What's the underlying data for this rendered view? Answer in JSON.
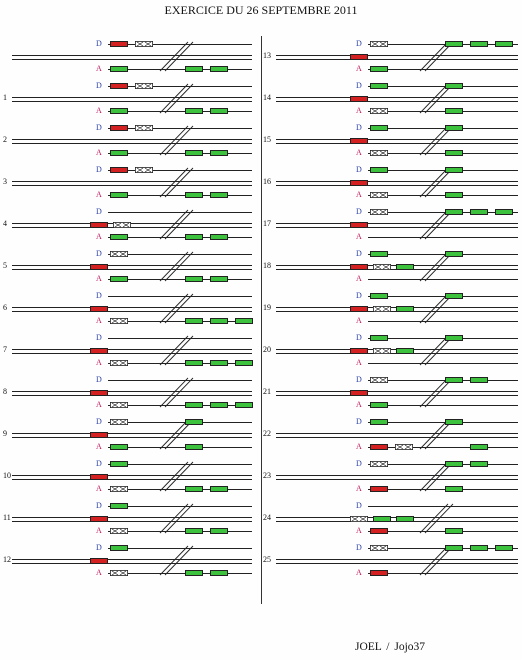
{
  "title": "EXERCICE DU 26 SEPTEMBRE 2011",
  "footer": "JOEL    /    Jojo37",
  "labels": {
    "depart": "D",
    "arrivee": "A"
  },
  "colors": {
    "red_wagon": "#d42020",
    "green_wagon": "#3cc23c",
    "line": "#222222",
    "departure_label": "#2b3fa8",
    "arrival_label": "#c2185b"
  },
  "panels": [
    {
      "number": "",
      "column": "left",
      "row": 0,
      "cars": [
        {
          "track": "D",
          "type": "red"
        },
        {
          "track": "D",
          "type": "empty"
        },
        {
          "track": "A",
          "type": "green"
        },
        {
          "track": "A",
          "type": "green"
        },
        {
          "track": "A",
          "type": "green"
        }
      ]
    },
    {
      "number": "1",
      "column": "left",
      "row": 1,
      "cars": [
        {
          "track": "D",
          "type": "red"
        },
        {
          "track": "D",
          "type": "empty"
        },
        {
          "track": "A",
          "type": "green"
        },
        {
          "track": "A",
          "type": "green"
        },
        {
          "track": "A",
          "type": "green"
        }
      ]
    },
    {
      "number": "2",
      "column": "left",
      "row": 2,
      "cars": [
        {
          "track": "D",
          "type": "red"
        },
        {
          "track": "D",
          "type": "empty"
        },
        {
          "track": "A",
          "type": "green"
        },
        {
          "track": "A",
          "type": "green"
        },
        {
          "track": "A",
          "type": "green"
        }
      ]
    },
    {
      "number": "3",
      "column": "left",
      "row": 3,
      "cars": [
        {
          "track": "D",
          "type": "red"
        },
        {
          "track": "D",
          "type": "empty"
        },
        {
          "track": "A",
          "type": "green"
        },
        {
          "track": "A",
          "type": "green"
        },
        {
          "track": "A",
          "type": "green"
        }
      ]
    },
    {
      "number": "4",
      "column": "left",
      "row": 4,
      "cars": [
        {
          "track": "M",
          "type": "red"
        },
        {
          "track": "M",
          "type": "empty"
        },
        {
          "track": "A",
          "type": "green"
        },
        {
          "track": "A",
          "type": "green"
        },
        {
          "track": "A",
          "type": "green"
        }
      ]
    },
    {
      "number": "5",
      "column": "left",
      "row": 5,
      "cars": [
        {
          "track": "D",
          "type": "empty"
        },
        {
          "track": "M",
          "type": "red"
        },
        {
          "track": "A",
          "type": "green"
        },
        {
          "track": "A",
          "type": "green"
        },
        {
          "track": "A",
          "type": "green"
        }
      ]
    },
    {
      "number": "6",
      "column": "left",
      "row": 6,
      "cars": [
        {
          "track": "M",
          "type": "red"
        },
        {
          "track": "A",
          "type": "empty"
        },
        {
          "track": "A",
          "type": "green"
        },
        {
          "track": "A",
          "type": "green"
        },
        {
          "track": "A",
          "type": "green"
        }
      ]
    },
    {
      "number": "7",
      "column": "left",
      "row": 7,
      "cars": [
        {
          "track": "M",
          "type": "red"
        },
        {
          "track": "A",
          "type": "empty"
        },
        {
          "track": "A",
          "type": "green"
        },
        {
          "track": "A",
          "type": "green"
        },
        {
          "track": "A",
          "type": "green"
        }
      ]
    },
    {
      "number": "8",
      "column": "left",
      "row": 8,
      "cars": [
        {
          "track": "M",
          "type": "red"
        },
        {
          "track": "A",
          "type": "empty"
        },
        {
          "track": "A",
          "type": "green"
        },
        {
          "track": "A",
          "type": "green"
        },
        {
          "track": "A",
          "type": "green"
        }
      ]
    },
    {
      "number": "9",
      "column": "left",
      "row": 9,
      "cars": [
        {
          "track": "D",
          "type": "empty"
        },
        {
          "track": "D",
          "type": "green"
        },
        {
          "track": "M",
          "type": "red"
        },
        {
          "track": "A",
          "type": "green"
        },
        {
          "track": "A",
          "type": "green"
        }
      ]
    },
    {
      "number": "10",
      "column": "left",
      "row": 10,
      "cars": [
        {
          "track": "D",
          "type": "green"
        },
        {
          "track": "M",
          "type": "red"
        },
        {
          "track": "A",
          "type": "empty"
        },
        {
          "track": "A",
          "type": "green"
        },
        {
          "track": "A",
          "type": "green"
        }
      ]
    },
    {
      "number": "11",
      "column": "left",
      "row": 11,
      "cars": [
        {
          "track": "D",
          "type": "green"
        },
        {
          "track": "M",
          "type": "red"
        },
        {
          "track": "A",
          "type": "empty"
        },
        {
          "track": "A",
          "type": "green"
        },
        {
          "track": "A",
          "type": "green"
        }
      ]
    },
    {
      "number": "12",
      "column": "left",
      "row": 12,
      "cars": [
        {
          "track": "D",
          "type": "green"
        },
        {
          "track": "M",
          "type": "red"
        },
        {
          "track": "A",
          "type": "empty"
        },
        {
          "track": "A",
          "type": "green"
        },
        {
          "track": "A",
          "type": "green"
        }
      ]
    },
    {
      "number": "13",
      "column": "right",
      "row": 0,
      "cars": [
        {
          "track": "D",
          "type": "empty"
        },
        {
          "track": "D",
          "type": "green"
        },
        {
          "track": "D",
          "type": "green"
        },
        {
          "track": "D",
          "type": "green"
        },
        {
          "track": "M",
          "type": "red"
        },
        {
          "track": "A",
          "type": "green"
        }
      ]
    },
    {
      "number": "14",
      "column": "right",
      "row": 1,
      "cars": [
        {
          "track": "D",
          "type": "green"
        },
        {
          "track": "D",
          "type": "green"
        },
        {
          "track": "M",
          "type": "red"
        },
        {
          "track": "A",
          "type": "empty"
        },
        {
          "track": "A",
          "type": "green"
        }
      ]
    },
    {
      "number": "15",
      "column": "right",
      "row": 2,
      "cars": [
        {
          "track": "D",
          "type": "green"
        },
        {
          "track": "D",
          "type": "green"
        },
        {
          "track": "M",
          "type": "red"
        },
        {
          "track": "A",
          "type": "empty"
        },
        {
          "track": "A",
          "type": "green"
        }
      ]
    },
    {
      "number": "16",
      "column": "right",
      "row": 3,
      "cars": [
        {
          "track": "D",
          "type": "green"
        },
        {
          "track": "D",
          "type": "green"
        },
        {
          "track": "M",
          "type": "red"
        },
        {
          "track": "A",
          "type": "empty"
        },
        {
          "track": "A",
          "type": "green"
        }
      ]
    },
    {
      "number": "17",
      "column": "right",
      "row": 4,
      "cars": [
        {
          "track": "D",
          "type": "empty"
        },
        {
          "track": "D",
          "type": "green"
        },
        {
          "track": "D",
          "type": "green"
        },
        {
          "track": "D",
          "type": "green"
        },
        {
          "track": "M",
          "type": "red"
        }
      ]
    },
    {
      "number": "18",
      "column": "right",
      "row": 5,
      "cars": [
        {
          "track": "D",
          "type": "green"
        },
        {
          "track": "D",
          "type": "green"
        },
        {
          "track": "M",
          "type": "red"
        },
        {
          "track": "M",
          "type": "empty"
        },
        {
          "track": "M",
          "type": "green"
        }
      ]
    },
    {
      "number": "19",
      "column": "right",
      "row": 6,
      "cars": [
        {
          "track": "D",
          "type": "green"
        },
        {
          "track": "D",
          "type": "green"
        },
        {
          "track": "M",
          "type": "red"
        },
        {
          "track": "M",
          "type": "empty"
        },
        {
          "track": "M",
          "type": "green"
        }
      ]
    },
    {
      "number": "20",
      "column": "right",
      "row": 7,
      "cars": [
        {
          "track": "D",
          "type": "green"
        },
        {
          "track": "D",
          "type": "green"
        },
        {
          "track": "M",
          "type": "red"
        },
        {
          "track": "M",
          "type": "empty"
        },
        {
          "track": "M",
          "type": "green"
        }
      ]
    },
    {
      "number": "21",
      "column": "right",
      "row": 8,
      "cars": [
        {
          "track": "D",
          "type": "empty"
        },
        {
          "track": "D",
          "type": "green"
        },
        {
          "track": "D",
          "type": "green"
        },
        {
          "track": "M",
          "type": "red"
        },
        {
          "track": "A",
          "type": "green"
        }
      ]
    },
    {
      "number": "22",
      "column": "right",
      "row": 9,
      "cars": [
        {
          "track": "D",
          "type": "green"
        },
        {
          "track": "D",
          "type": "green"
        },
        {
          "track": "A",
          "type": "red"
        },
        {
          "track": "A",
          "type": "empty"
        },
        {
          "track": "A",
          "type": "green"
        }
      ]
    },
    {
      "number": "23",
      "column": "right",
      "row": 10,
      "cars": [
        {
          "track": "D",
          "type": "empty"
        },
        {
          "track": "D",
          "type": "green"
        },
        {
          "track": "D",
          "type": "green"
        },
        {
          "track": "A",
          "type": "red"
        },
        {
          "track": "A",
          "type": "green"
        }
      ]
    },
    {
      "number": "24",
      "column": "right",
      "row": 11,
      "cars": [
        {
          "track": "M",
          "type": "empty"
        },
        {
          "track": "M",
          "type": "green"
        },
        {
          "track": "M",
          "type": "green"
        },
        {
          "track": "A",
          "type": "red"
        },
        {
          "track": "A",
          "type": "green"
        }
      ]
    },
    {
      "number": "25",
      "column": "right",
      "row": 12,
      "cars": [
        {
          "track": "D",
          "type": "empty"
        },
        {
          "track": "D",
          "type": "green"
        },
        {
          "track": "D",
          "type": "green"
        },
        {
          "track": "D",
          "type": "green"
        },
        {
          "track": "A",
          "type": "red"
        }
      ]
    }
  ]
}
